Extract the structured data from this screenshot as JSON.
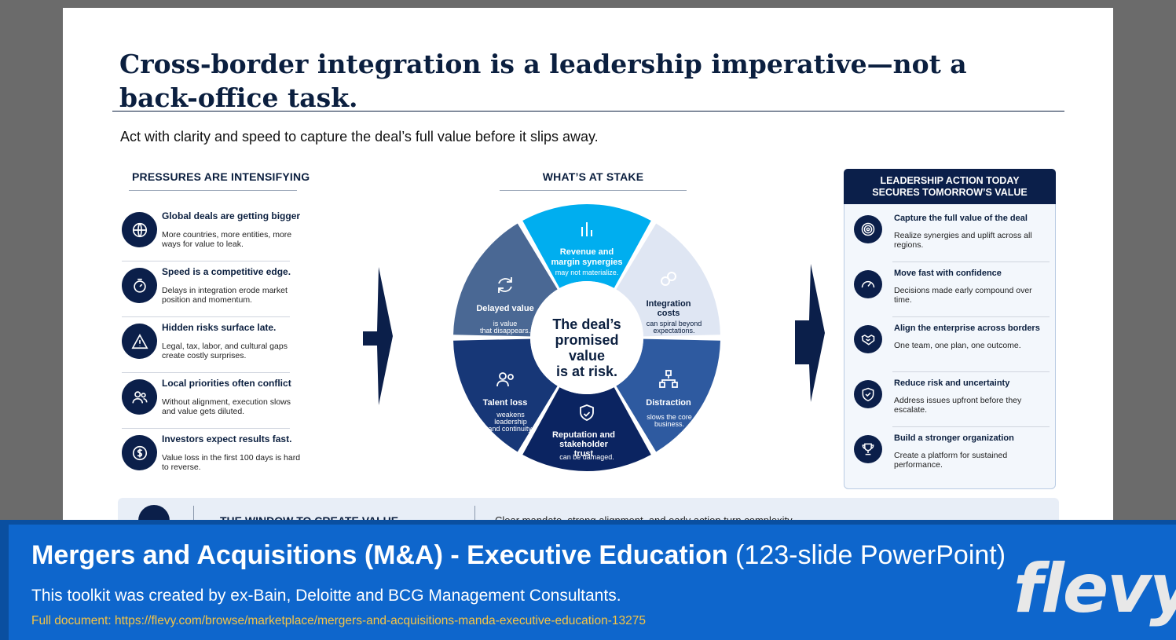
{
  "slide": {
    "title": "Cross-border integration is a leadership imperative—not a back-office task.",
    "subtitle": "Act with clarity and speed to capture the deal’s full value before it slips away."
  },
  "pressures": {
    "heading": "PRESSURES ARE INTENSIFYING",
    "items": [
      {
        "icon": "globe-icon",
        "title": "Global deals are getting bigger",
        "desc": "More countries, more entities, more ways for value to leak."
      },
      {
        "icon": "stopwatch-icon",
        "title": "Speed is a competitive edge.",
        "desc": "Delays in integration erode market position and momentum."
      },
      {
        "icon": "warning-icon",
        "title": "Hidden risks surface late.",
        "desc": "Legal, tax, labor, and cultural gaps create costly surprises."
      },
      {
        "icon": "people-icon",
        "title": "Local priorities often conflict",
        "desc": "Without alignment, execution slows and value gets diluted."
      },
      {
        "icon": "dollar-icon",
        "title": "Investors expect results fast.",
        "desc": "Value loss in the first 100 days is hard to reverse."
      }
    ]
  },
  "stake": {
    "heading": "WHAT’S AT STAKE",
    "center_lines": [
      "The deal’s",
      "promised",
      "value",
      "is at risk."
    ],
    "segments": [
      {
        "icon": "bar-chart-icon",
        "title": "Revenue and margin synergies",
        "desc": "may not materialize.",
        "color": "#00aeef"
      },
      {
        "icon": "link-icon",
        "title": "Integration costs",
        "desc": "can spiral beyond expectations.",
        "color": "#dfe6f3"
      },
      {
        "icon": "org-chart-icon",
        "title": "Distraction",
        "desc": "slows the core business.",
        "color": "#2e5aa0"
      },
      {
        "icon": "shield-check-icon",
        "title": "Reputation and stakeholder trust",
        "desc": "can be damaged.",
        "color": "#0b2461"
      },
      {
        "icon": "people-icon",
        "title": "Talent loss",
        "desc": "weakens leadership and continuity.",
        "color": "#173777"
      },
      {
        "icon": "refresh-icon",
        "title": "Delayed value",
        "desc": "is value that disappears.",
        "color": "#4a6894"
      }
    ]
  },
  "leadership": {
    "heading_line1": "LEADERSHIP ACTION TODAY",
    "heading_line2": "SECURES TOMORROW’S VALUE",
    "items": [
      {
        "icon": "target-icon",
        "title": "Capture the full value of the deal",
        "desc": "Realize synergies and uplift across all regions."
      },
      {
        "icon": "speedometer-icon",
        "title": "Move fast with confidence",
        "desc": "Decisions made early compound over time."
      },
      {
        "icon": "handshake-icon",
        "title": "Align the enterprise across borders",
        "desc": "One team, one plan, one outcome."
      },
      {
        "icon": "shield-check-icon",
        "title": "Reduce risk and uncertainty",
        "desc": "Address issues upfront before they escalate."
      },
      {
        "icon": "trophy-icon",
        "title": "Build a stronger organization",
        "desc": "Create a platform for sustained performance."
      }
    ]
  },
  "bottom_strip": {
    "title": "THE WINDOW TO CREATE VALUE",
    "text": "Clear mandate, strong alignment, and early action turn complexity"
  },
  "banner": {
    "title_bold": "Mergers and Acquisitions (M&A) - Executive Education",
    "title_light": "(123-slide PowerPoint)",
    "subtitle": "This toolkit was created by ex-Bain, Deloitte and BCG Management Consultants.",
    "link": "Full document: https://flevy.com/browse/marketplace/mergers-and-acquisitions-manda-executive-education-13275",
    "logo": "flevy"
  }
}
